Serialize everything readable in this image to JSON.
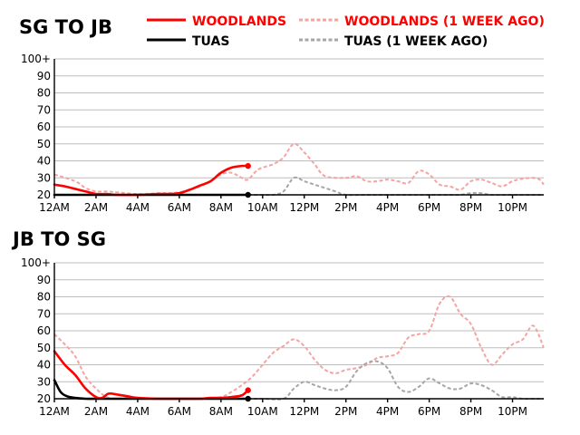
{
  "legend": {
    "woodlands": {
      "label": "WOODLANDS",
      "color": "#ff0000"
    },
    "woodlands_prev": {
      "label": "WOODLANDS (1 WEEK AGO)",
      "color": "#ff0000",
      "line_color": "#f5a3a3"
    },
    "tuas": {
      "label": "TUAS",
      "color": "#000000"
    },
    "tuas_prev": {
      "label": "TUAS (1 WEEK AGO)",
      "color": "#000000",
      "line_color": "#a6a6a6"
    }
  },
  "chart_data": [
    {
      "type": "line",
      "title": "SG TO JB",
      "x_unit": "hour of day",
      "xlim": [
        0,
        23.5
      ],
      "ylim": [
        20,
        100
      ],
      "x_ticks": [
        {
          "x": 0,
          "label": "12AM"
        },
        {
          "x": 2,
          "label": "2AM"
        },
        {
          "x": 4,
          "label": "4AM"
        },
        {
          "x": 6,
          "label": "6AM"
        },
        {
          "x": 8,
          "label": "8AM"
        },
        {
          "x": 10,
          "label": "10AM"
        },
        {
          "x": 12,
          "label": "12PM"
        },
        {
          "x": 14,
          "label": "2PM"
        },
        {
          "x": 16,
          "label": "4PM"
        },
        {
          "x": 18,
          "label": "6PM"
        },
        {
          "x": 20,
          "label": "8PM"
        },
        {
          "x": 22,
          "label": "10PM"
        }
      ],
      "y_ticks": [
        {
          "y": 20,
          "label": "20"
        },
        {
          "y": 30,
          "label": "30"
        },
        {
          "y": 40,
          "label": "40"
        },
        {
          "y": 50,
          "label": "50"
        },
        {
          "y": 60,
          "label": "60"
        },
        {
          "y": 70,
          "label": "70"
        },
        {
          "y": 80,
          "label": "80"
        },
        {
          "y": 90,
          "label": "90"
        },
        {
          "y": 100,
          "label": "100+"
        }
      ],
      "series": [
        {
          "name": "WOODLANDS (1 WEEK AGO)",
          "key": "woodlands_prev",
          "style": "dashed",
          "x": [
            0,
            1,
            1.5,
            2,
            2.5,
            3,
            4,
            5,
            5.5,
            6,
            6.5,
            7,
            7.5,
            8,
            8.5,
            9,
            9.3,
            9.8,
            10.5,
            11,
            11.5,
            12,
            12.5,
            13,
            14,
            14.5,
            15,
            15.5,
            16,
            16.5,
            17,
            17.5,
            18,
            18.5,
            19,
            19.5,
            20,
            20.5,
            21,
            21.5,
            22,
            22.5,
            23,
            23.3,
            23.5
          ],
          "y": [
            32,
            28,
            24,
            22,
            22,
            21.5,
            20.5,
            21,
            21,
            21.5,
            23,
            25,
            28,
            32,
            33,
            30,
            29,
            35,
            38,
            42,
            50,
            45,
            38,
            31,
            30,
            31,
            28,
            28,
            29,
            28,
            27,
            34,
            32,
            26,
            25,
            23,
            28,
            29,
            27,
            25,
            28,
            29.5,
            30,
            29,
            26
          ]
        },
        {
          "name": "TUAS (1 WEEK AGO)",
          "key": "tuas_prev",
          "style": "dashed",
          "x": [
            9.3,
            10,
            10.5,
            11,
            11.5,
            12,
            12.5,
            13,
            13.5,
            14,
            15,
            16,
            17,
            18,
            19,
            19.5,
            20,
            20.5,
            21,
            22,
            23,
            23.5
          ],
          "y": [
            20,
            20,
            20,
            22,
            30,
            28,
            26,
            24,
            22,
            20,
            20,
            20,
            20,
            20,
            20,
            20,
            21,
            21,
            20,
            20,
            20,
            20
          ]
        },
        {
          "name": "TUAS",
          "key": "tuas",
          "style": "solid",
          "x": [
            0,
            1,
            2,
            3,
            4,
            5,
            6,
            7,
            8,
            9.3
          ],
          "y": [
            20,
            20,
            20,
            20,
            20,
            20,
            20,
            20,
            20,
            20
          ]
        },
        {
          "name": "WOODLANDS",
          "key": "woodlands",
          "style": "solid",
          "x": [
            0,
            0.5,
            1,
            1.5,
            2,
            2.5,
            3,
            4,
            5,
            5.5,
            6,
            6.5,
            7,
            7.5,
            8,
            8.5,
            9,
            9.3
          ],
          "y": [
            26,
            25,
            23.5,
            22,
            20.5,
            20.5,
            20,
            20,
            20.5,
            20.5,
            21,
            23,
            25.5,
            28,
            33,
            36,
            37,
            37
          ]
        }
      ]
    },
    {
      "type": "line",
      "title": "JB TO SG",
      "x_unit": "hour of day",
      "xlim": [
        0,
        23.5
      ],
      "ylim": [
        20,
        100
      ],
      "x_ticks": [
        {
          "x": 0,
          "label": "12AM"
        },
        {
          "x": 2,
          "label": "2AM"
        },
        {
          "x": 4,
          "label": "4AM"
        },
        {
          "x": 6,
          "label": "6AM"
        },
        {
          "x": 8,
          "label": "8AM"
        },
        {
          "x": 10,
          "label": "10AM"
        },
        {
          "x": 12,
          "label": "12PM"
        },
        {
          "x": 14,
          "label": "2PM"
        },
        {
          "x": 16,
          "label": "4PM"
        },
        {
          "x": 18,
          "label": "6PM"
        },
        {
          "x": 20,
          "label": "8PM"
        },
        {
          "x": 22,
          "label": "10PM"
        }
      ],
      "y_ticks": [
        {
          "y": 20,
          "label": "20"
        },
        {
          "y": 30,
          "label": "30"
        },
        {
          "y": 40,
          "label": "40"
        },
        {
          "y": 50,
          "label": "50"
        },
        {
          "y": 60,
          "label": "60"
        },
        {
          "y": 70,
          "label": "70"
        },
        {
          "y": 80,
          "label": "80"
        },
        {
          "y": 90,
          "label": "90"
        },
        {
          "y": 100,
          "label": "100+"
        }
      ],
      "series": [
        {
          "name": "WOODLANDS (1 WEEK AGO)",
          "key": "woodlands_prev",
          "style": "dashed",
          "x": [
            0,
            0.5,
            1,
            1.5,
            2,
            2.5,
            3,
            4,
            5,
            6,
            7,
            8,
            8.5,
            9,
            9.5,
            10,
            10.5,
            11,
            11.5,
            12,
            12.5,
            13,
            13.5,
            14,
            14.5,
            15,
            15.5,
            16,
            16.5,
            17,
            17.5,
            18,
            18.5,
            19,
            19.5,
            20,
            20.5,
            21,
            21.5,
            22,
            22.5,
            23,
            23.5
          ],
          "y": [
            58,
            52,
            45,
            33,
            26,
            21,
            20,
            20.5,
            20,
            20,
            20,
            21,
            24,
            28,
            33,
            40,
            47,
            51,
            55,
            51,
            43,
            37,
            35,
            37,
            38,
            40,
            44,
            45,
            47,
            56,
            58,
            60,
            76,
            80,
            70,
            64,
            50,
            40,
            46,
            52,
            55,
            63,
            50
          ]
        },
        {
          "name": "TUAS (1 WEEK AGO)",
          "key": "tuas_prev",
          "style": "dashed",
          "x": [
            9.3,
            10,
            11,
            11.5,
            12,
            12.5,
            13,
            13.5,
            14,
            14.5,
            15,
            15.5,
            16,
            16.5,
            17,
            17.5,
            18,
            18.5,
            19,
            19.5,
            20,
            20.5,
            21,
            21.5,
            22,
            22.5,
            23,
            23.5
          ],
          "y": [
            20,
            20,
            20,
            26,
            30,
            28,
            26,
            25,
            27,
            36,
            41,
            42,
            38,
            27,
            24,
            27,
            32,
            29,
            26,
            26,
            29,
            28,
            25,
            21,
            21,
            20,
            20,
            20
          ]
        },
        {
          "name": "TUAS",
          "key": "tuas",
          "style": "solid",
          "x": [
            0,
            0.3,
            0.6,
            1,
            1.5,
            2,
            3,
            4,
            5,
            6,
            7,
            8,
            9.3
          ],
          "y": [
            31,
            24,
            21.5,
            20.5,
            20,
            20,
            20,
            20,
            20,
            20,
            20,
            20,
            20
          ]
        },
        {
          "name": "WOODLANDS",
          "key": "woodlands",
          "style": "solid",
          "x": [
            0,
            0.5,
            1,
            1.5,
            2,
            2.3,
            2.6,
            3,
            3.5,
            4,
            5,
            6,
            7,
            7.5,
            8,
            8.5,
            9,
            9.3
          ],
          "y": [
            48,
            40,
            34,
            26,
            21,
            20.5,
            23,
            22.5,
            21.5,
            20.5,
            20,
            20,
            20,
            20.5,
            20.5,
            21,
            22,
            25
          ]
        }
      ]
    }
  ]
}
